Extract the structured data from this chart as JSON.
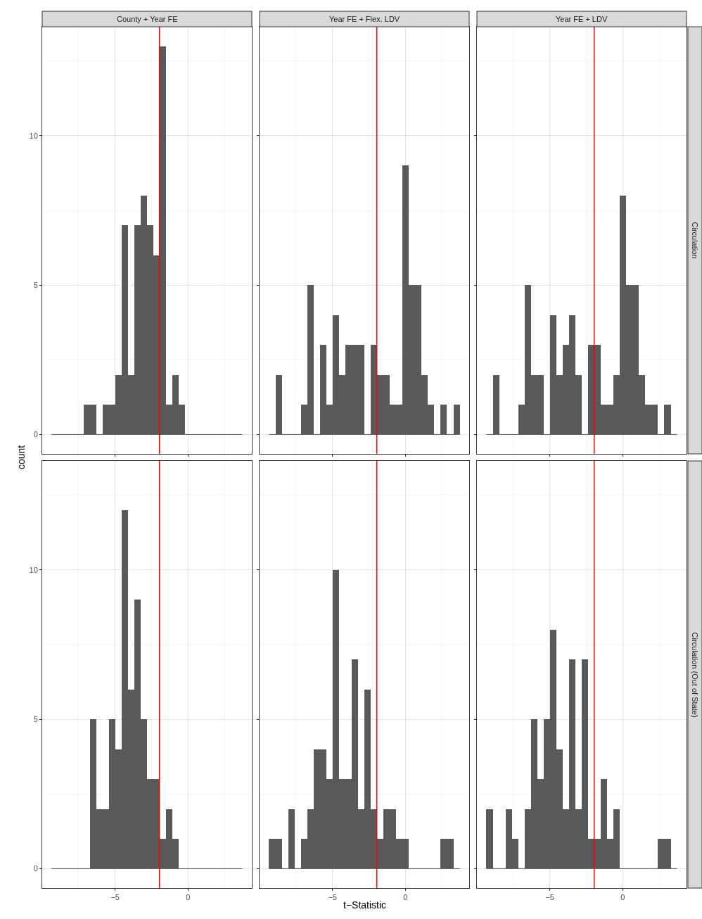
{
  "chart_data": [
    {
      "type": "histogram",
      "title": "County + Year FE",
      "ylabel": "count",
      "bins": [
        -9.35,
        -8.91,
        -8.48,
        -8.04,
        -7.61,
        -7.17,
        -6.74,
        -6.3,
        -5.86,
        -5.43,
        -4.99,
        -4.56,
        -4.12,
        -3.69,
        -3.25,
        -2.81,
        -2.38,
        -1.94,
        -1.51,
        -1.07,
        -0.64,
        -0.2,
        0.24,
        0.67,
        1.11,
        1.54,
        1.98,
        2.41,
        2.85,
        3.29,
        3.72
      ],
      "values": [
        0,
        0,
        0,
        0,
        0,
        1,
        1,
        0,
        1,
        1,
        2,
        7,
        2,
        7,
        8,
        7,
        6,
        13,
        1,
        2,
        1,
        0,
        0,
        0,
        0,
        0,
        0,
        0,
        0,
        0
      ],
      "color": "#595959",
      "xlim": [
        -10.0,
        4.37
      ],
      "ylim": [
        -0.65,
        13.65
      ],
      "xticks": [
        -5,
        0
      ],
      "yticks": [
        0,
        5,
        10
      ],
      "grid": true,
      "tick_labels": "y",
      "ref_lines": [
        {
          "axis": "x",
          "value": -1.96,
          "color": "#ff0000"
        }
      ]
    },
    {
      "type": "histogram",
      "title": "Year FE + Flex. LDV",
      "bins": [
        -9.35,
        -8.91,
        -8.48,
        -8.04,
        -7.61,
        -7.17,
        -6.74,
        -6.3,
        -5.86,
        -5.43,
        -4.99,
        -4.56,
        -4.12,
        -3.69,
        -3.25,
        -2.81,
        -2.38,
        -1.94,
        -1.51,
        -1.07,
        -0.64,
        -0.2,
        0.24,
        0.67,
        1.11,
        1.54,
        1.98,
        2.41,
        2.85,
        3.29,
        3.72
      ],
      "values": [
        0,
        2,
        0,
        0,
        0,
        1,
        5,
        0,
        3,
        1,
        4,
        2,
        3,
        3,
        3,
        0,
        3,
        2,
        2,
        1,
        1,
        9,
        5,
        5,
        2,
        1,
        0,
        1,
        0,
        1
      ],
      "color": "#595959",
      "xlim": [
        -10.0,
        4.37
      ],
      "ylim": [
        -0.65,
        13.65
      ],
      "xticks": [
        -5,
        0
      ],
      "yticks": [
        0,
        5,
        10
      ],
      "grid": true,
      "tick_labels": false,
      "ref_lines": [
        {
          "axis": "x",
          "value": -1.96,
          "color": "#ff0000"
        }
      ]
    },
    {
      "type": "histogram",
      "title": "Year FE + LDV",
      "annotations": [
        "Circulation"
      ],
      "bins": [
        -9.35,
        -8.91,
        -8.48,
        -8.04,
        -7.61,
        -7.17,
        -6.74,
        -6.3,
        -5.86,
        -5.43,
        -4.99,
        -4.56,
        -4.12,
        -3.69,
        -3.25,
        -2.81,
        -2.38,
        -1.94,
        -1.51,
        -1.07,
        -0.64,
        -0.2,
        0.24,
        0.67,
        1.11,
        1.54,
        1.98,
        2.41,
        2.85,
        3.29,
        3.72
      ],
      "values": [
        0,
        2,
        0,
        0,
        0,
        1,
        5,
        2,
        2,
        0,
        4,
        2,
        3,
        4,
        2,
        0,
        3,
        3,
        1,
        1,
        2,
        8,
        5,
        5,
        2,
        1,
        1,
        0,
        1,
        0
      ],
      "color": "#595959",
      "xlim": [
        -10.0,
        4.37
      ],
      "ylim": [
        -0.65,
        13.65
      ],
      "xticks": [
        -5,
        0
      ],
      "yticks": [
        0,
        5,
        10
      ],
      "grid": true,
      "tick_labels": false,
      "ref_lines": [
        {
          "axis": "x",
          "value": -1.96,
          "color": "#ff0000"
        }
      ]
    },
    {
      "type": "histogram",
      "bins": [
        -9.35,
        -8.91,
        -8.48,
        -8.04,
        -7.61,
        -7.17,
        -6.74,
        -6.3,
        -5.86,
        -5.43,
        -4.99,
        -4.56,
        -4.12,
        -3.69,
        -3.25,
        -2.81,
        -2.38,
        -1.94,
        -1.51,
        -1.07,
        -0.64,
        -0.2,
        0.24,
        0.67,
        1.11,
        1.54,
        1.98,
        2.41,
        2.85,
        3.29,
        3.72
      ],
      "values": [
        0,
        0,
        0,
        0,
        0,
        0,
        5,
        2,
        2,
        5,
        4,
        12,
        6,
        9,
        5,
        3,
        3,
        1,
        2,
        1,
        0,
        0,
        0,
        0,
        0,
        0,
        0,
        0,
        0,
        0
      ],
      "color": "#595959",
      "xlim": [
        -10.0,
        4.37
      ],
      "ylim": [
        -0.65,
        13.65
      ],
      "xticks": [
        -5,
        0
      ],
      "yticks": [
        0,
        5,
        10
      ],
      "grid": true,
      "ref_lines": [
        {
          "axis": "x",
          "value": -1.96,
          "color": "#ff0000"
        }
      ]
    },
    {
      "type": "histogram",
      "xlabel": "t−Statistic",
      "bins": [
        -9.35,
        -8.91,
        -8.48,
        -8.04,
        -7.61,
        -7.17,
        -6.74,
        -6.3,
        -5.86,
        -5.43,
        -4.99,
        -4.56,
        -4.12,
        -3.69,
        -3.25,
        -2.81,
        -2.38,
        -1.94,
        -1.51,
        -1.07,
        -0.64,
        -0.2,
        0.24,
        0.67,
        1.11,
        1.54,
        1.98,
        2.41,
        2.85,
        3.29,
        3.72
      ],
      "values": [
        1,
        1,
        0,
        2,
        0,
        1,
        2,
        4,
        4,
        3,
        10,
        3,
        3,
        7,
        2,
        6,
        2,
        1,
        2,
        2,
        1,
        1,
        0,
        0,
        0,
        0,
        0,
        1,
        1,
        0
      ],
      "color": "#595959",
      "xlim": [
        -10.0,
        4.37
      ],
      "ylim": [
        -0.65,
        13.65
      ],
      "xticks": [
        -5,
        0
      ],
      "yticks": [
        0,
        5,
        10
      ],
      "grid": true,
      "tick_labels": "x",
      "ref_lines": [
        {
          "axis": "x",
          "value": -1.96,
          "color": "#ff0000"
        }
      ]
    },
    {
      "type": "histogram",
      "annotations": [
        "Circulation (Out of State)"
      ],
      "bins": [
        -9.35,
        -8.91,
        -8.48,
        -8.04,
        -7.61,
        -7.17,
        -6.74,
        -6.3,
        -5.86,
        -5.43,
        -4.99,
        -4.56,
        -4.12,
        -3.69,
        -3.25,
        -2.81,
        -2.38,
        -1.94,
        -1.51,
        -1.07,
        -0.64,
        -0.2,
        0.24,
        0.67,
        1.11,
        1.54,
        1.98,
        2.41,
        2.85,
        3.29,
        3.72
      ],
      "values": [
        2,
        0,
        0,
        2,
        1,
        0,
        2,
        5,
        3,
        5,
        8,
        4,
        2,
        7,
        2,
        7,
        1,
        1,
        3,
        1,
        2,
        0,
        0,
        0,
        0,
        0,
        0,
        1,
        1,
        0
      ],
      "color": "#595959",
      "xlim": [
        -10.0,
        4.37
      ],
      "ylim": [
        -0.65,
        13.65
      ],
      "xticks": [
        -5,
        0
      ],
      "yticks": [
        0,
        5,
        10
      ],
      "grid": true,
      "tick_labels": "x",
      "ref_lines": [
        {
          "axis": "x",
          "value": -1.96,
          "color": "#ff0000"
        }
      ]
    }
  ]
}
